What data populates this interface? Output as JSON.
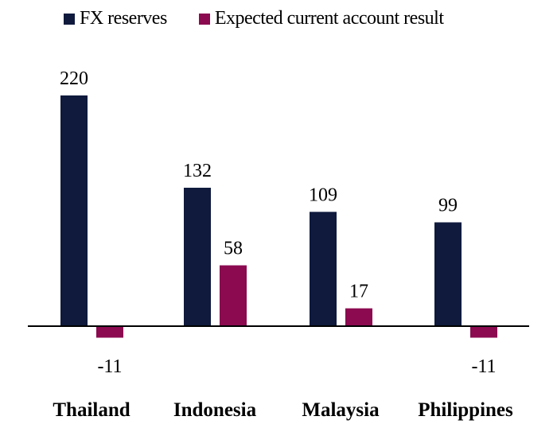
{
  "chart_data": {
    "type": "bar",
    "categories": [
      "Thailand",
      "Indonesia",
      "Malaysia",
      "Philippines"
    ],
    "series": [
      {
        "name": "FX reserves",
        "color": "#0f1a3d",
        "values": [
          220,
          132,
          109,
          99
        ]
      },
      {
        "name": "Expected current account result",
        "color": "#8b0a50",
        "values": [
          -11,
          58,
          17,
          -11
        ]
      }
    ],
    "data_labels": true,
    "legend_position": "top",
    "grid": false,
    "y_axis_visible": false,
    "ylim": [
      -11,
      220
    ]
  }
}
